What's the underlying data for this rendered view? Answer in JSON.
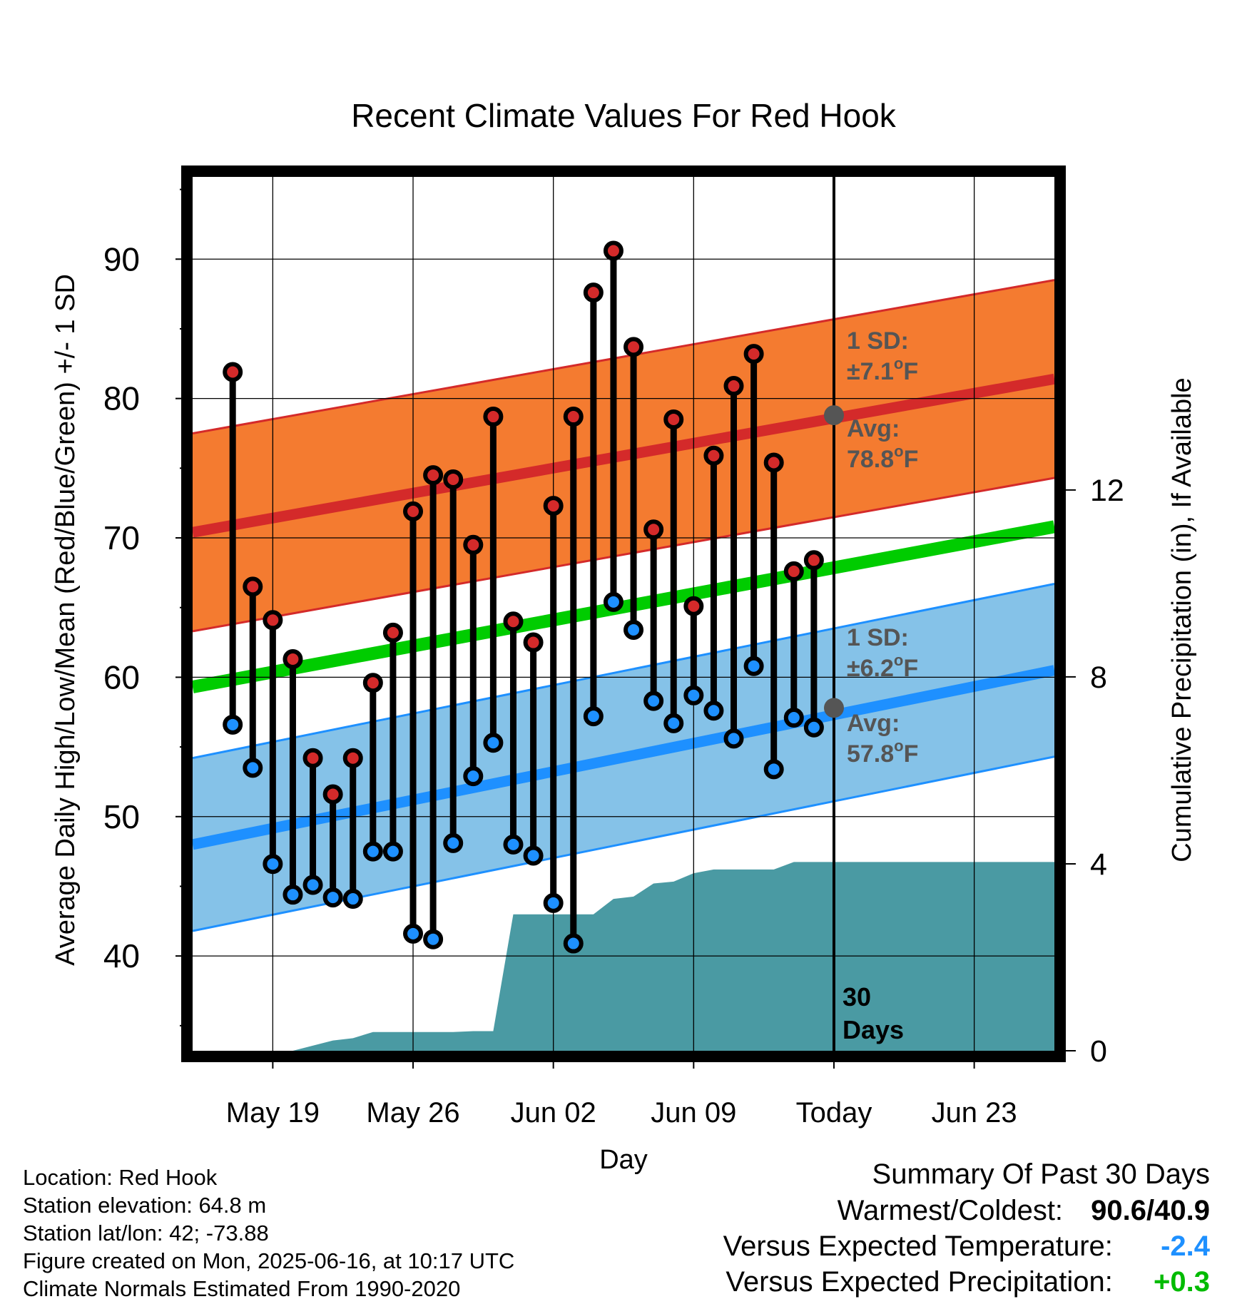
{
  "chart_data": {
    "type": "line",
    "title": "Recent Climate Values For Red Hook",
    "xlabel": "Day",
    "ylabel": "Average Daily High/Low/Mean (Red/Blue/Green) +/- 1 SD",
    "ylabel_right": "Cumulative Precipitation (in), If Available",
    "ylim": [
      33.2,
      95.9
    ],
    "ylim_right": [
      0,
      18.7
    ],
    "yticks": [
      "40",
      "50",
      "60",
      "70",
      "80",
      "90"
    ],
    "yticks_right": [
      "0",
      "4",
      "8",
      "12"
    ],
    "xlim": [
      "2025-05-15",
      "2025-06-27"
    ],
    "xticks": [
      {
        "date": "2025-05-19",
        "label": "May 19"
      },
      {
        "date": "2025-05-26",
        "label": "May 26"
      },
      {
        "date": "2025-06-02",
        "label": "Jun 02"
      },
      {
        "date": "2025-06-09",
        "label": "Jun 09"
      },
      {
        "date": "2025-06-16",
        "label": "Today"
      },
      {
        "date": "2025-06-23",
        "label": "Jun 23"
      }
    ],
    "today": "2025-06-16",
    "grid": true,
    "colors": {
      "high": "#d42a2a",
      "low": "#1e90ff",
      "mean": "#00cc00",
      "high_band": "#f47b30",
      "low_band": "#85c2e8",
      "precip": "#4a9aa3",
      "annotation": "#555555"
    },
    "normals": {
      "high_avg": {
        "start": 70.4,
        "end": 81.4
      },
      "high_sd": 7.1,
      "low_avg": {
        "start": 48.0,
        "end": 60.5
      },
      "low_sd": 6.2,
      "mean_avg": {
        "start": 59.3,
        "end": 70.8
      }
    },
    "daily": [
      {
        "date": "2025-05-17",
        "high": 81.9,
        "low": 56.6
      },
      {
        "date": "2025-05-18",
        "high": 66.5,
        "low": 53.5
      },
      {
        "date": "2025-05-19",
        "high": 64.1,
        "low": 46.6
      },
      {
        "date": "2025-05-20",
        "high": 61.3,
        "low": 44.4
      },
      {
        "date": "2025-05-21",
        "high": 54.2,
        "low": 45.1
      },
      {
        "date": "2025-05-22",
        "high": 51.6,
        "low": 44.2
      },
      {
        "date": "2025-05-23",
        "high": 54.2,
        "low": 44.1
      },
      {
        "date": "2025-05-24",
        "high": 59.6,
        "low": 47.5
      },
      {
        "date": "2025-05-25",
        "high": 63.2,
        "low": 47.5
      },
      {
        "date": "2025-05-26",
        "high": 71.9,
        "low": 41.6
      },
      {
        "date": "2025-05-27",
        "high": 74.5,
        "low": 41.2
      },
      {
        "date": "2025-05-28",
        "high": 74.2,
        "low": 48.1
      },
      {
        "date": "2025-05-29",
        "high": 69.5,
        "low": 52.9
      },
      {
        "date": "2025-05-30",
        "high": 78.7,
        "low": 55.3
      },
      {
        "date": "2025-05-31",
        "high": 64.0,
        "low": 48.0
      },
      {
        "date": "2025-06-01",
        "high": 62.5,
        "low": 47.2
      },
      {
        "date": "2025-06-02",
        "high": 72.3,
        "low": 43.8
      },
      {
        "date": "2025-06-03",
        "high": 78.7,
        "low": 40.9
      },
      {
        "date": "2025-06-04",
        "high": 87.6,
        "low": 57.2
      },
      {
        "date": "2025-06-05",
        "high": 90.6,
        "low": 65.4
      },
      {
        "date": "2025-06-06",
        "high": 83.7,
        "low": 63.4
      },
      {
        "date": "2025-06-07",
        "high": 70.6,
        "low": 58.3
      },
      {
        "date": "2025-06-08",
        "high": 78.5,
        "low": 56.7
      },
      {
        "date": "2025-06-09",
        "high": 65.1,
        "low": 58.7
      },
      {
        "date": "2025-06-10",
        "high": 75.9,
        "low": 57.6
      },
      {
        "date": "2025-06-11",
        "high": 80.9,
        "low": 55.6
      },
      {
        "date": "2025-06-12",
        "high": 83.2,
        "low": 60.8
      },
      {
        "date": "2025-06-13",
        "high": 75.4,
        "low": 53.4
      },
      {
        "date": "2025-06-14",
        "high": 67.6,
        "low": 57.1
      },
      {
        "date": "2025-06-15",
        "high": 68.4,
        "low": 56.4
      }
    ],
    "precip_cumulative": [
      {
        "date": "2025-05-15",
        "value": 0.0
      },
      {
        "date": "2025-05-20",
        "value": 0.0
      },
      {
        "date": "2025-05-22",
        "value": 0.22
      },
      {
        "date": "2025-05-23",
        "value": 0.27
      },
      {
        "date": "2025-05-24",
        "value": 0.4
      },
      {
        "date": "2025-05-25",
        "value": 0.4
      },
      {
        "date": "2025-05-26",
        "value": 0.4
      },
      {
        "date": "2025-05-27",
        "value": 0.4
      },
      {
        "date": "2025-05-28",
        "value": 0.4
      },
      {
        "date": "2025-05-29",
        "value": 0.42
      },
      {
        "date": "2025-05-30",
        "value": 0.42
      },
      {
        "date": "2025-05-31",
        "value": 2.92
      },
      {
        "date": "2025-06-01",
        "value": 2.92
      },
      {
        "date": "2025-06-02",
        "value": 2.92
      },
      {
        "date": "2025-06-03",
        "value": 2.92
      },
      {
        "date": "2025-06-04",
        "value": 2.92
      },
      {
        "date": "2025-06-05",
        "value": 3.25
      },
      {
        "date": "2025-06-06",
        "value": 3.3
      },
      {
        "date": "2025-06-07",
        "value": 3.58
      },
      {
        "date": "2025-06-08",
        "value": 3.62
      },
      {
        "date": "2025-06-09",
        "value": 3.8
      },
      {
        "date": "2025-06-10",
        "value": 3.88
      },
      {
        "date": "2025-06-11",
        "value": 3.88
      },
      {
        "date": "2025-06-12",
        "value": 3.88
      },
      {
        "date": "2025-06-13",
        "value": 3.88
      },
      {
        "date": "2025-06-14",
        "value": 4.04
      },
      {
        "date": "2025-06-15",
        "value": 4.04
      },
      {
        "date": "2025-06-16",
        "value": 4.04
      },
      {
        "date": "2025-06-27",
        "value": 4.04
      }
    ],
    "annotations": {
      "high_sd_line1": "1 SD:",
      "high_sd_line2": "±7.1",
      "high_avg_line1": "Avg:",
      "high_avg_line2": "78.8",
      "low_sd_line1": "1 SD:",
      "low_sd_line2": "±6.2",
      "low_avg_line1": "Avg:",
      "low_avg_line2": "57.8",
      "degree_symbol": "o",
      "unit": "F",
      "window_line1": "30",
      "window_line2": "Days"
    },
    "today_markers": {
      "high_avg": 78.8,
      "low_avg": 57.8
    }
  },
  "metadata": {
    "location": "Location: Red Hook",
    "elevation": "Station elevation: 64.8 m",
    "latlon": "Station lat/lon: 42; -73.88",
    "created": "Figure created on Mon, 2025-06-16, at 10:17 UTC",
    "normals": "Climate Normals Estimated From 1990-2020"
  },
  "summary": {
    "title": "Summary Of Past 30 Days",
    "warmest_coldest_label": "Warmest/Coldest:",
    "warmest_coldest_value": "90.6/40.9",
    "temp_label": "Versus Expected Temperature:",
    "temp_value": "-2.4",
    "temp_color": "#1e90ff",
    "precip_label": "Versus Expected Precipitation:",
    "precip_value": "+0.3",
    "precip_color": "#00bb00"
  }
}
